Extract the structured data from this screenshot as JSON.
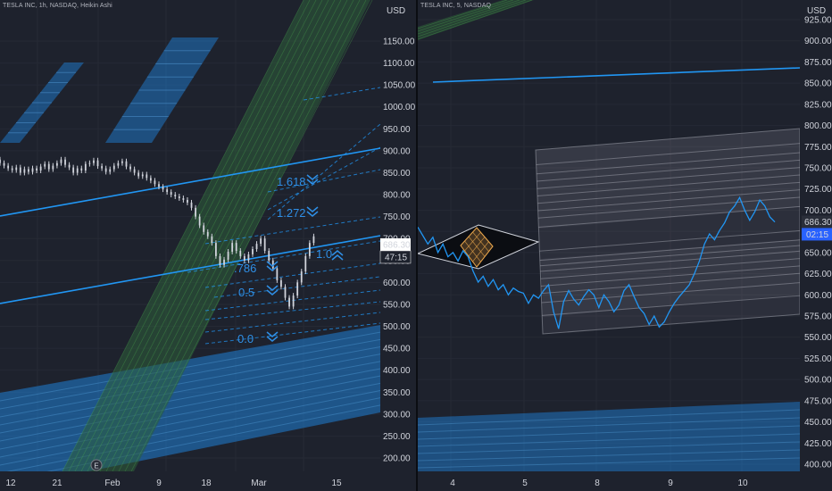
{
  "left_panel": {
    "header": "TESLA INC, 1h, NASDAQ, Heikin Ashi",
    "currency": "USD",
    "price_tag": "686.30",
    "countdown": "47:15",
    "event_marker": "E",
    "fib_labels": [
      "1.618",
      "1.272",
      "1.0",
      ".786",
      "0.5",
      "0.0"
    ]
  },
  "right_panel": {
    "header": "TESLA INC, 5, NASDAQ",
    "currency": "USD",
    "price_tag": "686.30",
    "countdown": "02:15"
  },
  "colors": {
    "background": "#1e222d",
    "price_line": "#2196f3",
    "candles": "#d1d4dc",
    "band_blue": "#1e88e5",
    "fan_green": "#2e5e3a",
    "channel_grey": "#9598a1",
    "price_tag_bg": "#ffffff",
    "countdown_bg": "#2962ff"
  },
  "chart_data": [
    {
      "type": "line",
      "title": "TESLA INC, 1h, NASDAQ, Heikin Ashi",
      "ylabel": "USD",
      "y_ticks": [
        200,
        250,
        300,
        350,
        400,
        450,
        500,
        550,
        600,
        650,
        700,
        750,
        800,
        850,
        900,
        950,
        1000,
        1050,
        1100,
        1150
      ],
      "ylim": [
        180,
        1190
      ],
      "x_tick_labels": [
        "12",
        "21",
        "Feb",
        "9",
        "18",
        "Mar",
        "15"
      ],
      "last_price": 686.3,
      "fib_levels": {
        "1.618": 800,
        "1.272": 735,
        "1.0": 660,
        ".786": 620,
        "0.5": 565,
        "0.0": 470
      },
      "series": [
        {
          "values": [
            880,
            872,
            866,
            860,
            856,
            862,
            850,
            858,
            852,
            860,
            855,
            864,
            870,
            858,
            866,
            872,
            880,
            868,
            862,
            850,
            860,
            855,
            870,
            872,
            878,
            865,
            860,
            852,
            858,
            866,
            872,
            876,
            864,
            858,
            850,
            842,
            846,
            838,
            832,
            824,
            818,
            812,
            806,
            800,
            796,
            792,
            788,
            782,
            770,
            750,
            730,
            715,
            705,
            690,
            660,
            640,
            652,
            670,
            690,
            672,
            660,
            650,
            664,
            676,
            688,
            700,
            672,
            650,
            632,
            605,
            590,
            565,
            545,
            570,
            600,
            625,
            660,
            690,
            705
          ]
        }
      ]
    },
    {
      "type": "line",
      "title": "TESLA INC, 5, NASDAQ",
      "ylabel": "USD",
      "y_ticks": [
        400,
        425,
        450,
        475,
        500,
        525,
        550,
        575,
        600,
        625,
        650,
        675,
        700,
        725,
        750,
        775,
        800,
        825,
        850,
        875,
        900,
        925
      ],
      "ylim": [
        390,
        940
      ],
      "x_tick_labels": [
        "4",
        "5",
        "8",
        "9",
        "10"
      ],
      "last_price": 686.3,
      "series": [
        {
          "values": [
            680,
            670,
            660,
            668,
            650,
            660,
            645,
            650,
            640,
            652,
            645,
            628,
            615,
            622,
            610,
            618,
            606,
            612,
            600,
            608,
            604,
            602,
            590,
            600,
            596,
            605,
            612,
            580,
            560,
            592,
            605,
            595,
            588,
            598,
            606,
            600,
            585,
            600,
            592,
            580,
            588,
            605,
            612,
            598,
            585,
            578,
            565,
            575,
            562,
            568,
            580,
            590,
            598,
            605,
            612,
            625,
            640,
            660,
            672,
            665,
            676,
            685,
            698,
            705,
            715,
            700,
            688,
            698,
            712,
            705,
            692,
            686
          ]
        }
      ]
    }
  ]
}
